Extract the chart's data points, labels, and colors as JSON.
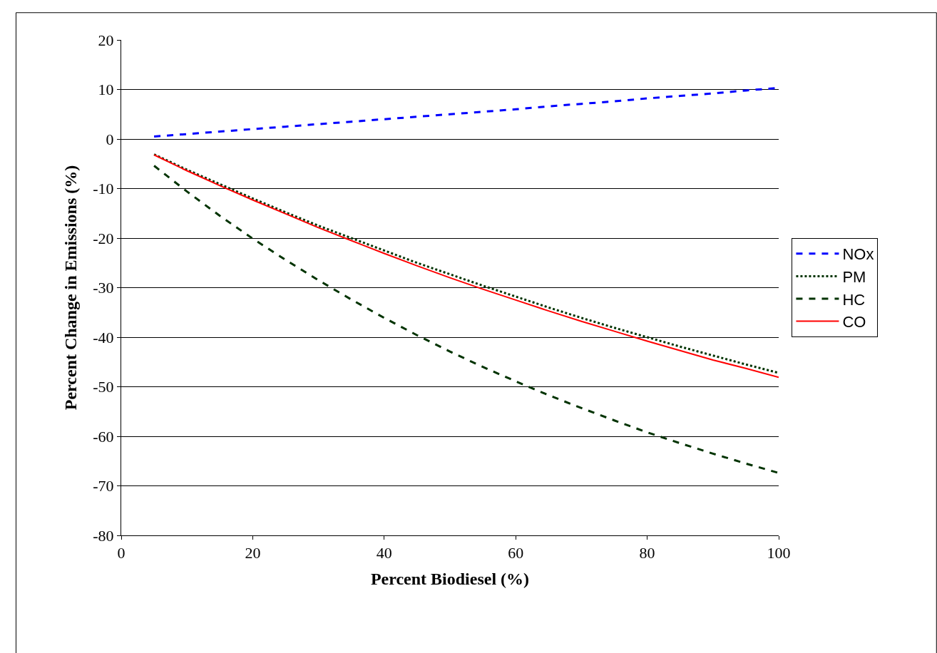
{
  "chart_data": {
    "type": "line",
    "xlabel": "Percent Biodiesel (%)",
    "ylabel": "Percent Change in Emissions (%)",
    "x": [
      5,
      10,
      15,
      20,
      25,
      30,
      35,
      40,
      45,
      50,
      55,
      60,
      65,
      70,
      75,
      80,
      85,
      90,
      95,
      100
    ],
    "series": [
      {
        "name": "NOx",
        "color": "#0000ff",
        "line_style": "dashed",
        "values": [
          0.5,
          1.0,
          1.5,
          2.0,
          2.5,
          3.0,
          3.5,
          4.0,
          4.5,
          5.0,
          5.5,
          6.0,
          6.6,
          7.1,
          7.6,
          8.2,
          8.7,
          9.2,
          9.8,
          10.3
        ]
      },
      {
        "name": "PM",
        "color": "#003300",
        "line_style": "dotted",
        "values": [
          -3.1,
          -6.2,
          -9.1,
          -12.0,
          -14.8,
          -17.5,
          -20.0,
          -22.5,
          -25.0,
          -27.3,
          -29.6,
          -31.8,
          -34.0,
          -36.1,
          -38.1,
          -40.0,
          -41.9,
          -43.7,
          -45.5,
          -47.2
        ]
      },
      {
        "name": "HC",
        "color": "#003300",
        "line_style": "dashed",
        "values": [
          -5.4,
          -10.6,
          -15.5,
          -20.1,
          -24.4,
          -28.5,
          -32.4,
          -36.1,
          -39.6,
          -42.9,
          -46.0,
          -48.9,
          -51.7,
          -54.3,
          -56.8,
          -59.2,
          -61.4,
          -63.5,
          -65.5,
          -67.4
        ]
      },
      {
        "name": "CO",
        "color": "#ff0000",
        "line_style": "solid",
        "values": [
          -3.2,
          -6.4,
          -9.4,
          -12.3,
          -15.1,
          -17.9,
          -20.5,
          -23.1,
          -25.6,
          -28.0,
          -30.3,
          -32.5,
          -34.7,
          -36.8,
          -38.8,
          -40.8,
          -42.7,
          -44.6,
          -46.3,
          -48.1
        ]
      }
    ],
    "xlim": [
      0,
      100
    ],
    "xticks": [
      0,
      20,
      40,
      60,
      80,
      100
    ],
    "ylim": [
      -80,
      20
    ],
    "yticks": [
      -80,
      -70,
      -60,
      -50,
      -40,
      -30,
      -20,
      -10,
      0,
      10,
      20
    ],
    "grid": "y",
    "legend": "right",
    "marker": "none"
  }
}
